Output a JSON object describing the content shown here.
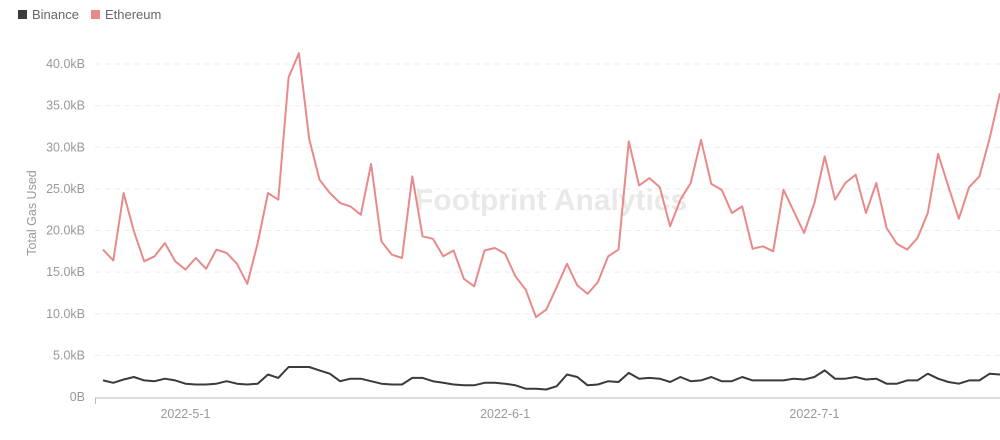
{
  "chart_data": {
    "type": "line",
    "title": "",
    "xlabel": "",
    "ylabel": "Total Gas Used",
    "ylim": [
      0,
      40000
    ],
    "y_ticks": [
      "0B",
      "5.0kB",
      "10.0kB",
      "15.0kB",
      "20.0kB",
      "25.0kB",
      "30.0kB",
      "35.0kB",
      "40.0kB"
    ],
    "x_ticks": [
      {
        "label": "2022-5-1",
        "date": "2022-05-01"
      },
      {
        "label": "2022-6-1",
        "date": "2022-06-01"
      },
      {
        "label": "2022-7-1",
        "date": "2022-07-01"
      }
    ],
    "grid": true,
    "legend_position": "top-left",
    "watermark": "Footprint Analytics",
    "x": [
      "2022-04-23",
      "2022-04-24",
      "2022-04-25",
      "2022-04-26",
      "2022-04-27",
      "2022-04-28",
      "2022-04-29",
      "2022-04-30",
      "2022-05-01",
      "2022-05-02",
      "2022-05-03",
      "2022-05-04",
      "2022-05-05",
      "2022-05-06",
      "2022-05-07",
      "2022-05-08",
      "2022-05-09",
      "2022-05-10",
      "2022-05-11",
      "2022-05-12",
      "2022-05-13",
      "2022-05-14",
      "2022-05-15",
      "2022-05-16",
      "2022-05-17",
      "2022-05-18",
      "2022-05-19",
      "2022-05-20",
      "2022-05-21",
      "2022-05-22",
      "2022-05-23",
      "2022-05-24",
      "2022-05-25",
      "2022-05-26",
      "2022-05-27",
      "2022-05-28",
      "2022-05-29",
      "2022-05-30",
      "2022-05-31",
      "2022-06-01",
      "2022-06-02",
      "2022-06-03",
      "2022-06-04",
      "2022-06-05",
      "2022-06-06",
      "2022-06-07",
      "2022-06-08",
      "2022-06-09",
      "2022-06-10",
      "2022-06-11",
      "2022-06-12",
      "2022-06-13",
      "2022-06-14",
      "2022-06-15",
      "2022-06-16",
      "2022-06-17",
      "2022-06-18",
      "2022-06-19",
      "2022-06-20",
      "2022-06-21",
      "2022-06-22",
      "2022-06-23",
      "2022-06-24",
      "2022-06-25",
      "2022-06-26",
      "2022-06-27",
      "2022-06-28",
      "2022-06-29",
      "2022-06-30",
      "2022-07-01",
      "2022-07-02",
      "2022-07-03",
      "2022-07-04",
      "2022-07-05",
      "2022-07-06",
      "2022-07-07",
      "2022-07-08",
      "2022-07-09",
      "2022-07-10",
      "2022-07-11",
      "2022-07-12",
      "2022-07-13",
      "2022-07-14",
      "2022-07-15",
      "2022-07-16",
      "2022-07-17",
      "2022-07-18",
      "2022-07-19"
    ],
    "series": [
      {
        "name": "Binance",
        "color": "#3b3b3b",
        "values": [
          2000,
          1700,
          2100,
          2400,
          2000,
          1900,
          2200,
          2000,
          1600,
          1500,
          1500,
          1600,
          1900,
          1600,
          1500,
          1600,
          2700,
          2300,
          3600,
          3600,
          3600,
          3200,
          2800,
          1900,
          2200,
          2200,
          1900,
          1600,
          1500,
          1500,
          2300,
          2300,
          1900,
          1700,
          1500,
          1400,
          1400,
          1700,
          1700,
          1600,
          1400,
          1000,
          1000,
          900,
          1300,
          2700,
          2400,
          1400,
          1500,
          1900,
          1800,
          2900,
          2200,
          2300,
          2200,
          1800,
          2400,
          1900,
          2000,
          2400,
          1900,
          1900,
          2400,
          2000,
          2000,
          2000,
          2000,
          2200,
          2100,
          2400,
          3200,
          2200,
          2200,
          2400,
          2100,
          2200,
          1600,
          1600,
          2000,
          2000,
          2800,
          2200,
          1800,
          1600,
          2000,
          2000,
          2800,
          2700
        ]
      },
      {
        "name": "Ethereum",
        "color": "#e88a8a",
        "values": [
          17700,
          16400,
          24500,
          19900,
          16300,
          16900,
          18500,
          16300,
          15300,
          16700,
          15400,
          17700,
          17300,
          16000,
          13600,
          18500,
          24500,
          23700,
          38400,
          41300,
          31000,
          26100,
          24500,
          23300,
          22900,
          21900,
          28000,
          18700,
          17100,
          16700,
          26500,
          19300,
          19000,
          16900,
          17600,
          14200,
          13300,
          17600,
          17900,
          17200,
          14500,
          12900,
          9600,
          10500,
          13200,
          16000,
          13400,
          12400,
          13800,
          16900,
          17700,
          30700,
          25400,
          26300,
          25200,
          20500,
          23700,
          25700,
          30900,
          25600,
          24900,
          22100,
          22900,
          17800,
          18100,
          17500,
          24900,
          22300,
          19700,
          23300,
          28900,
          23700,
          25700,
          26700,
          22100,
          25700,
          20300,
          18400,
          17700,
          19100,
          22100,
          29200,
          25300,
          21400,
          25200,
          26500,
          31100,
          36500
        ]
      }
    ]
  }
}
